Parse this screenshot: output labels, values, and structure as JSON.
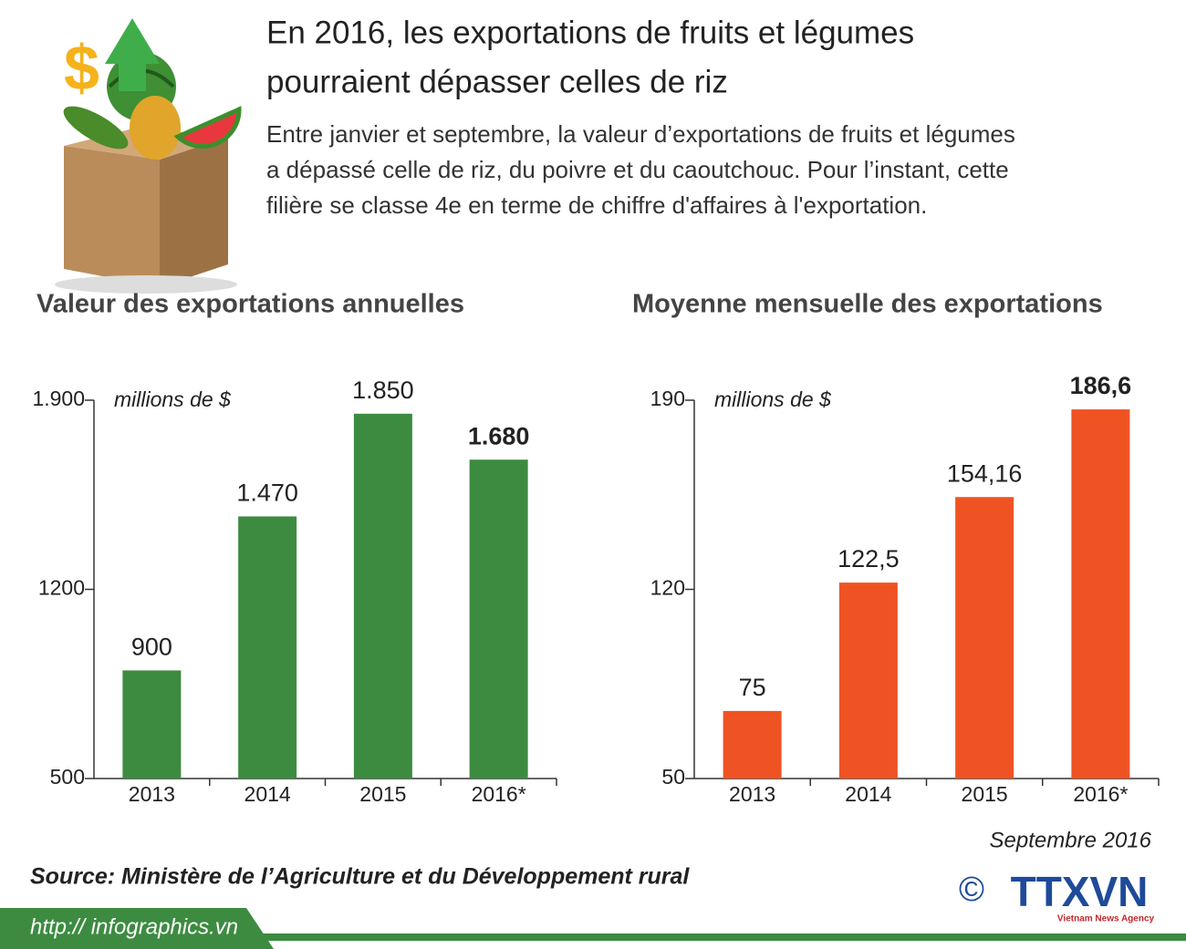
{
  "header": {
    "title": [
      "En 2016, les exportations de fruits et légumes",
      "pourraient dépasser celles de riz"
    ],
    "subtitle": [
      "Entre janvier et septembre, la valeur d’exportations de fruits et légumes",
      "a dépassé celle de riz, du poivre et du caoutchouc.  Pour l’instant, cette",
      "filière se classe 4e en terme de chiffre d'affaires à l'exportation."
    ]
  },
  "chart_data": [
    {
      "type": "bar",
      "title": "Valeur des exportations annuelles",
      "unit": "millions de $",
      "categories": [
        "2013",
        "2014",
        "2015",
        "2016*"
      ],
      "values": [
        900,
        1470,
        1850,
        1680
      ],
      "value_labels": [
        "900",
        "1.470",
        "1.850",
        "1.680"
      ],
      "color": "#3d8b41",
      "ylim": [
        500,
        1900
      ],
      "yticks": [
        500,
        1200,
        {
          "value": 1900,
          "label": "1.900"
        }
      ]
    },
    {
      "type": "bar",
      "title": "Moyenne mensuelle des exportations",
      "unit": "millions de $",
      "categories": [
        "2013",
        "2014",
        "2015",
        "2016*"
      ],
      "values": [
        75,
        122.5,
        154.16,
        186.6
      ],
      "value_labels": [
        "75",
        "122,5",
        "154,16",
        "186,6"
      ],
      "color": "#f05323",
      "ylim": [
        50,
        190
      ],
      "yticks": [
        50,
        120,
        190
      ]
    }
  ],
  "footer": {
    "date": "Septembre 2016",
    "source": "Source: Ministère de l’Agriculture et du Développement rural",
    "url": "http:// infographics.vn",
    "copyright": "©",
    "logo": "TTXVN",
    "agency": "Vietnam News Agency"
  }
}
